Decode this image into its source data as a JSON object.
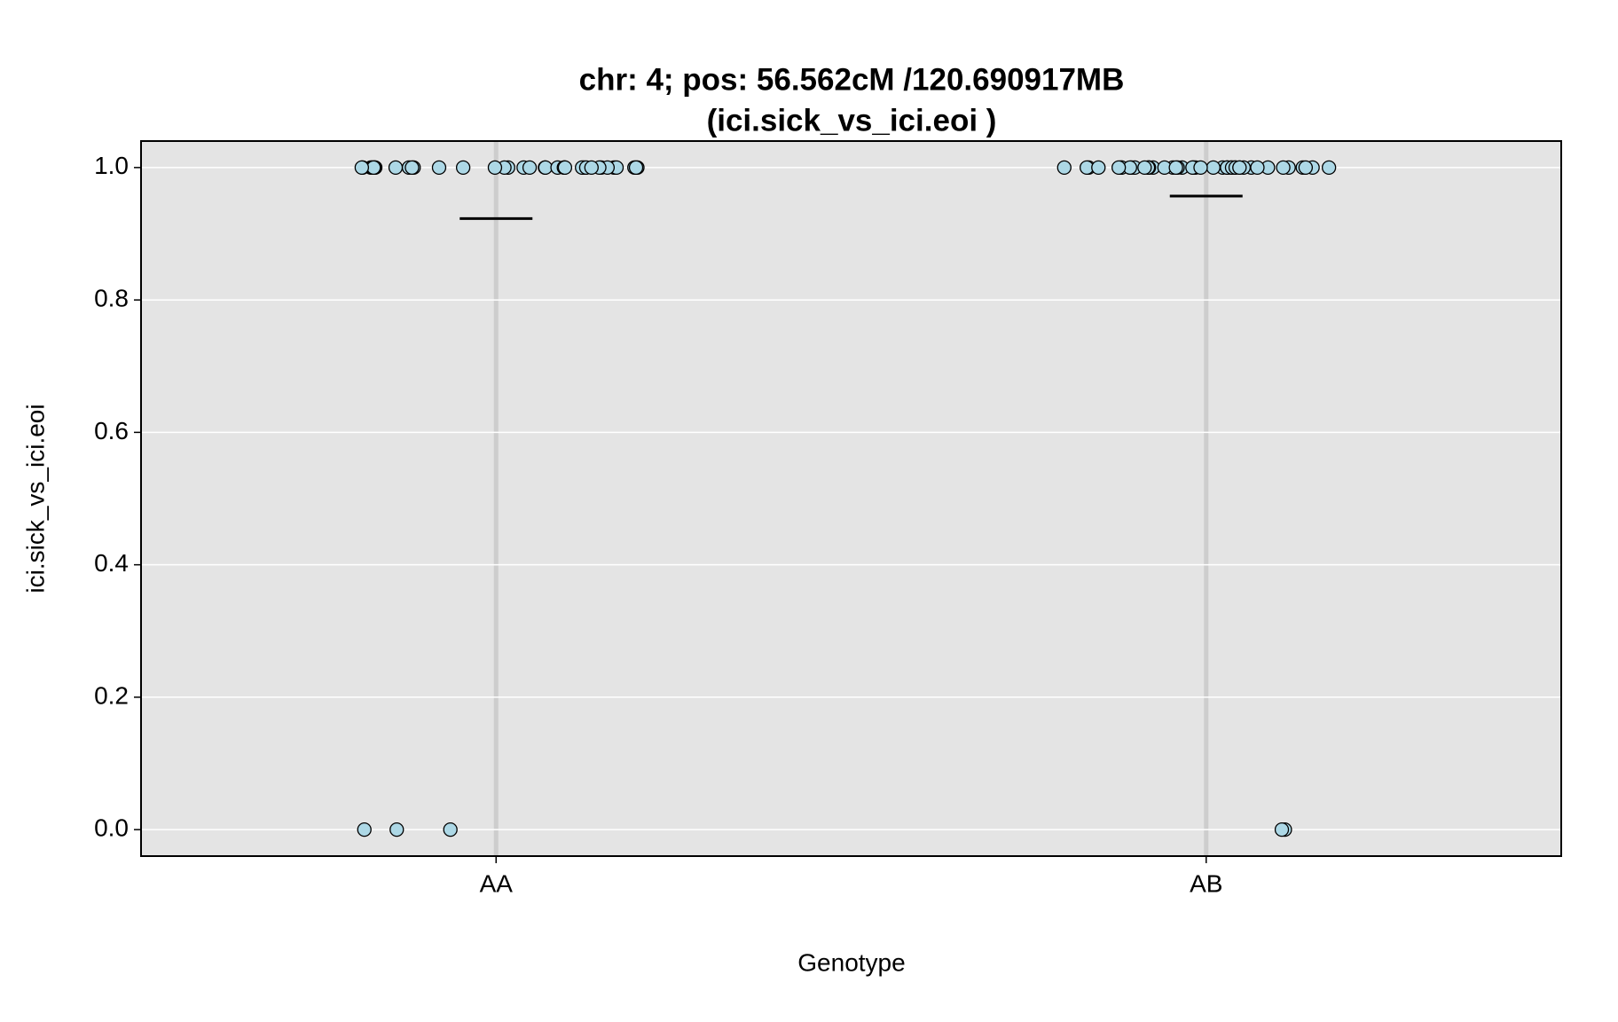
{
  "chart_data": {
    "type": "strip",
    "title": "chr: 4; pos: 56.562cM /120.690917MB",
    "subtitle": "(ici.sick_vs_ici.eoi )",
    "x_label": "Genotype",
    "y_label": "ici.sick_vs_ici.eoi",
    "categories": [
      "AA",
      "AB"
    ],
    "series": [
      {
        "name": "AA",
        "color": "#add8e6",
        "values": [
          1,
          1,
          1,
          1,
          1,
          1,
          1,
          1,
          1,
          1,
          1,
          1,
          1,
          1,
          1,
          1,
          1,
          1,
          1,
          1,
          1,
          1,
          1,
          1,
          1,
          1,
          1,
          1,
          1,
          1,
          1,
          1,
          1,
          1,
          1,
          1,
          0,
          0,
          0
        ]
      },
      {
        "name": "AB",
        "color": "#add8e6",
        "values": [
          1,
          1,
          1,
          1,
          1,
          1,
          1,
          1,
          1,
          1,
          1,
          1,
          1,
          1,
          1,
          1,
          1,
          1,
          1,
          1,
          1,
          1,
          1,
          1,
          1,
          1,
          1,
          1,
          1,
          1,
          1,
          1,
          1,
          1,
          1,
          1,
          1,
          1,
          1,
          1,
          1,
          1,
          1,
          1,
          0,
          0
        ]
      }
    ],
    "means": [
      0.923,
      0.957
    ],
    "ylim": [
      -0.04,
      1.04
    ],
    "yticks": [
      {
        "value": 0,
        "label": "0.0"
      },
      {
        "value": 0.2,
        "label": "0.2"
      },
      {
        "value": 0.4,
        "label": "0.4"
      },
      {
        "value": 0.6,
        "label": "0.6"
      },
      {
        "value": 0.8,
        "label": "0.8"
      },
      {
        "value": 1,
        "label": "1.0"
      }
    ],
    "grid": true
  }
}
